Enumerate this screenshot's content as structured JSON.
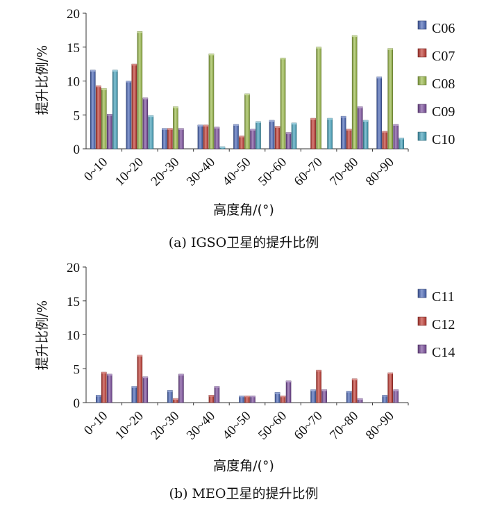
{
  "chart_data": [
    {
      "type": "bar",
      "title": "",
      "caption": "(a) IGSO卫星的提升比例",
      "xlabel": "高度角/(°)",
      "ylabel": "提升比例/%",
      "ylim": [
        0,
        20
      ],
      "yticks": [
        "0",
        "5",
        "10",
        "15",
        "20"
      ],
      "categories": [
        "0~10",
        "10~20",
        "20~30",
        "30~40",
        "40~50",
        "50~60",
        "60~70",
        "70~80",
        "80~90"
      ],
      "legend_position": "right",
      "series": [
        {
          "name": "C06",
          "color": "#4a67b8",
          "values": [
            11.6,
            10.0,
            3.0,
            3.5,
            3.6,
            4.2,
            0,
            4.8,
            10.6
          ]
        },
        {
          "name": "C07",
          "color": "#c23b33",
          "values": [
            9.3,
            12.5,
            3.0,
            3.5,
            1.9,
            3.3,
            4.5,
            2.9,
            2.6
          ]
        },
        {
          "name": "C08",
          "color": "#9bbb4a",
          "values": [
            8.9,
            17.3,
            6.2,
            14.0,
            8.1,
            13.4,
            15.0,
            16.7,
            14.8
          ]
        },
        {
          "name": "C09",
          "color": "#7a4d9c",
          "values": [
            5.1,
            7.5,
            3.0,
            3.2,
            2.9,
            2.4,
            0,
            6.2,
            3.6
          ]
        },
        {
          "name": "C10",
          "color": "#45a3bd",
          "values": [
            11.6,
            4.9,
            0,
            0.3,
            4.0,
            3.8,
            4.5,
            4.2,
            1.6
          ]
        }
      ]
    },
    {
      "type": "bar",
      "title": "",
      "caption": "(b) MEO卫星的提升比例",
      "xlabel": "高度角/(°)",
      "ylabel": "提升比例/%",
      "ylim": [
        0,
        20
      ],
      "yticks": [
        "0",
        "5",
        "10",
        "15",
        "20"
      ],
      "categories": [
        "0~10",
        "10~20",
        "20~30",
        "30~40",
        "40~50",
        "50~60",
        "60~70",
        "70~80",
        "80~90"
      ],
      "legend_position": "right",
      "series": [
        {
          "name": "C11",
          "color": "#4a67b8",
          "values": [
            1.1,
            2.4,
            1.8,
            0,
            1.0,
            1.5,
            1.9,
            1.7,
            1.1
          ]
        },
        {
          "name": "C12",
          "color": "#c23b33",
          "values": [
            4.5,
            7.0,
            0.6,
            1.1,
            1.0,
            1.0,
            4.8,
            3.5,
            4.4
          ]
        },
        {
          "name": "C14",
          "color": "#7a4d9c",
          "values": [
            4.2,
            3.8,
            4.2,
            2.4,
            1.0,
            3.2,
            1.9,
            0.6,
            1.9
          ]
        }
      ]
    }
  ]
}
